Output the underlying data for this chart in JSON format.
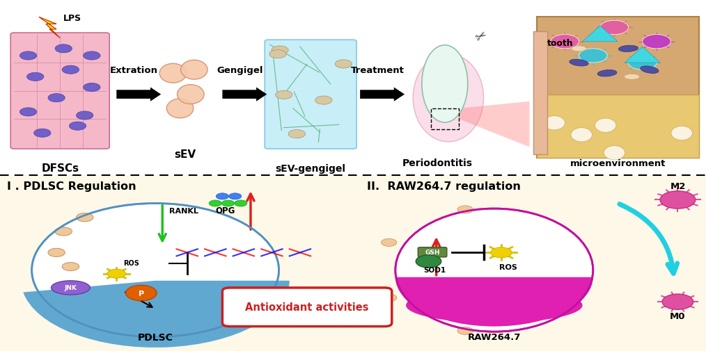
{
  "background_color": "#fdf8e8",
  "top_bg": "#ffffff",
  "section1_title": "I . PDLSC Regulation",
  "section2_title": "II.  RAW264.7 regulation",
  "antioxidant_box": "Antioxidant activities",
  "pdlsc_label": "PDLSC",
  "raw_label": "RAW264.7",
  "m2_label": "M2",
  "m0_label": "M0",
  "rankl_label": "RANKL",
  "opg_label": "OPG",
  "ros_label1": "ROS",
  "ros_label2": "ROS",
  "jnk_label": "JNK",
  "gsh_label": "GSH",
  "sod1_label": "SOD1",
  "tooth_label": "tooth",
  "lps_label": "LPS",
  "extraction_label": "Extration",
  "gengigel_label": "Gengigel",
  "treatment_label": "Treatment",
  "dfsc_label": "DFSCs",
  "sev_label": "sEV",
  "sev_gengigel_label": "sEV-gengigel",
  "periodontitis_label": "Periodontitis",
  "microenv_label": "microenvironment"
}
